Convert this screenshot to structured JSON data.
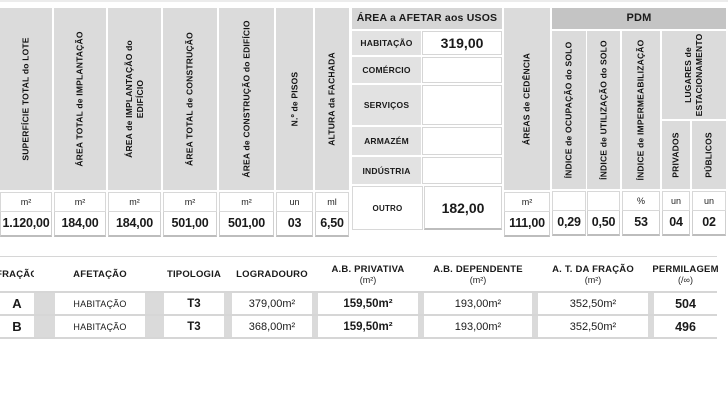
{
  "colors": {
    "header_fill": "#dbdbdb",
    "usos_bar_fill": "#d6d6d6",
    "pdm_bar_fill": "#c4c4c4",
    "usos_label_fill": "#e2e2e2",
    "gridline": "#cfcfcf",
    "text": "#1a1a1a"
  },
  "top": {
    "cols": [
      {
        "label": "SUPERFÍCIE TOTAL do LOTE",
        "unit": "m²",
        "value": "1.120,00"
      },
      {
        "label": "ÁREA TOTAL de IMPLANTAÇÃO",
        "unit": "m²",
        "value": "184,00"
      },
      {
        "label": "ÁREA de IMPLANTAÇÃO do\nEDIFÍCIO",
        "unit": "m²",
        "value": "184,00"
      },
      {
        "label": "ÁREA TOTAL de CONSTRUÇÃO",
        "unit": "m²",
        "value": "501,00"
      },
      {
        "label": "ÁREA de CONSTRUÇÃO do EDIFÍCIO",
        "unit": "m²",
        "value": "501,00"
      },
      {
        "label": "N.º de PISOS",
        "unit": "un",
        "value": "03"
      },
      {
        "label": "ALTURA da FACHADA",
        "unit": "ml",
        "value": "6,50"
      }
    ],
    "usos": {
      "header": "ÁREA a AFETAR aos USOS",
      "rows": [
        {
          "label": "HABITAÇÃO",
          "value": "319,00"
        },
        {
          "label": "COMÉRCIO",
          "value": ""
        },
        {
          "label": "SERVIÇOS",
          "value": ""
        },
        {
          "label": "ARMAZÉM",
          "value": ""
        },
        {
          "label": "INDÚSTRIA",
          "value": ""
        }
      ],
      "outro": {
        "label": "OUTRO",
        "value": "182,00"
      }
    },
    "cedencia": {
      "label": "ÁREAS de CEDÊNCIA",
      "unit": "m²",
      "value": "111,00"
    },
    "pdm": {
      "header": "PDM",
      "cols": [
        {
          "label": "ÍNDICE de OCUPAÇÃO do SOLO",
          "unit": "",
          "value": "0,29"
        },
        {
          "label": "ÍNDICE de UTILIZAÇÃO do SOLO",
          "unit": "",
          "value": "0,50"
        },
        {
          "label": "ÍNDICE de IMPERMEABILIZAÇÃO",
          "unit": "%",
          "value": "53"
        }
      ],
      "estacionamento": {
        "label": "LUGARES de\nESTACIONAMENTO",
        "sub": [
          {
            "label": "PRIVADOS",
            "unit": "un",
            "value": "04"
          },
          {
            "label": "PÚBLICOS",
            "unit": "un",
            "value": "02"
          }
        ]
      }
    }
  },
  "bottom": {
    "headers": [
      {
        "title": "FRAÇÃO",
        "sub": ""
      },
      {
        "title": "AFETAÇÃO",
        "sub": ""
      },
      {
        "title": "TIPOLOGIA",
        "sub": ""
      },
      {
        "title": "LOGRADOURO",
        "sub": ""
      },
      {
        "title": "A.B. PRIVATIVA",
        "sub": "(m²)"
      },
      {
        "title": "A.B. DEPENDENTE",
        "sub": "(m²)"
      },
      {
        "title": "A. T. DA FRAÇÃO",
        "sub": "(m²)"
      },
      {
        "title": "PERMILAGEM",
        "sub": "(/∞)"
      }
    ],
    "rows": [
      {
        "fracao": "A",
        "afetacao": "HABITAÇÃO",
        "tipologia": "T3",
        "logradouro": "379,00m²",
        "ab_privativa": "159,50m²",
        "ab_dependente": "193,00m²",
        "at_fracao": "352,50m²",
        "permilagem": "504"
      },
      {
        "fracao": "B",
        "afetacao": "HABITAÇÃO",
        "tipologia": "T3",
        "logradouro": "368,00m²",
        "ab_privativa": "159,50m²",
        "ab_dependente": "193,00m²",
        "at_fracao": "352,50m²",
        "permilagem": "496"
      }
    ]
  }
}
